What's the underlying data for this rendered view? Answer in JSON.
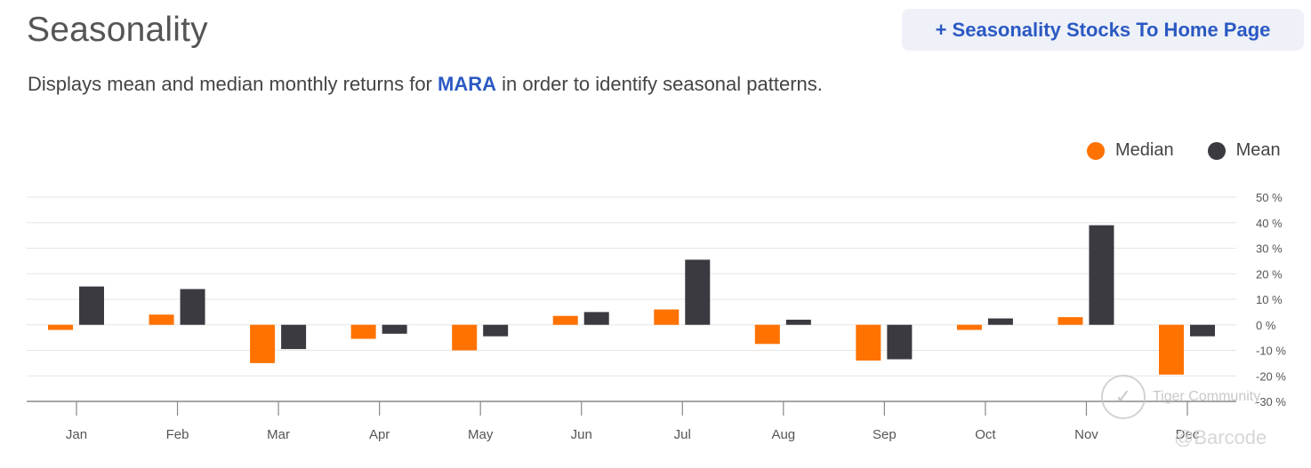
{
  "header": {
    "title": "Seasonality",
    "button_label": "+ Seasonality Stocks To Home Page"
  },
  "description": {
    "before": "Displays mean and median monthly returns for ",
    "ticker": "MARA",
    "after": " in order to identify seasonal patterns."
  },
  "legend": {
    "median": "Median",
    "mean": "Mean"
  },
  "colors": {
    "median": "#ff7200",
    "mean": "#3a3a40",
    "grid": "#e6e6e6",
    "axis": "#888888"
  },
  "chart_data": {
    "type": "bar",
    "title": "Seasonality",
    "categories": [
      "Jan",
      "Feb",
      "Mar",
      "Apr",
      "May",
      "Jun",
      "Jul",
      "Aug",
      "Sep",
      "Oct",
      "Nov",
      "Dec"
    ],
    "series": [
      {
        "name": "Median",
        "values": [
          -2,
          4,
          -15,
          -5.5,
          -10,
          3.5,
          6,
          -7.5,
          -14,
          -2,
          3,
          -19.5
        ]
      },
      {
        "name": "Mean",
        "values": [
          15,
          14,
          -9.5,
          -3.5,
          -4.5,
          5,
          25.5,
          2,
          -13.5,
          2.5,
          39,
          -4.5
        ]
      }
    ],
    "ylim": [
      -30,
      50
    ],
    "yticks": [
      50,
      40,
      30,
      20,
      10,
      0,
      -10,
      -20,
      -30
    ],
    "ytick_labels": [
      "50 %",
      "40 %",
      "30 %",
      "20 %",
      "10 %",
      "0 %",
      "-10 %",
      "-20 %",
      "-30 %"
    ],
    "legend_position": "top-right",
    "grid": true
  },
  "watermark": {
    "brand": "Tiger Community",
    "handle": "@Barcode"
  }
}
